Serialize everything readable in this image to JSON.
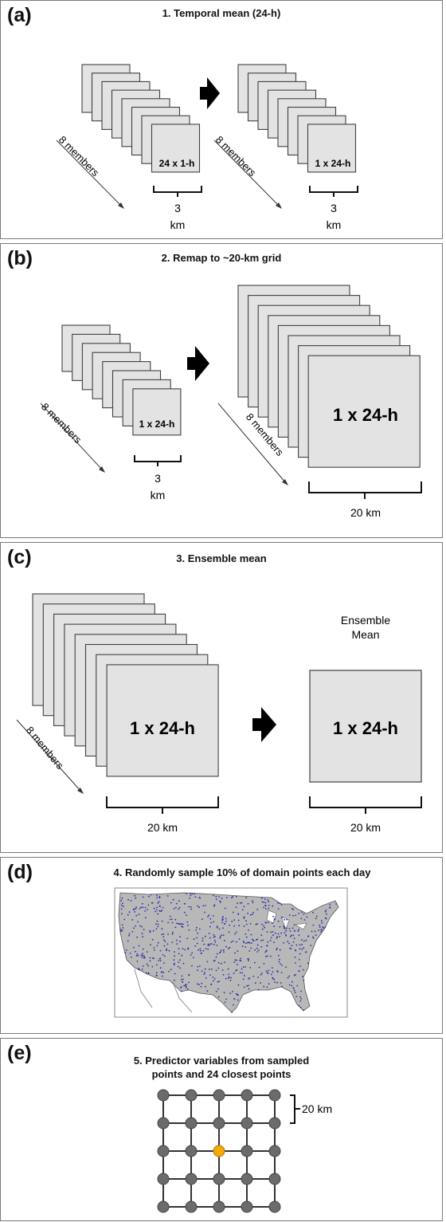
{
  "panels": {
    "a": {
      "letter": "(a)",
      "title": "1. Temporal mean (24-h)",
      "members_label": "8 members",
      "input_label": "24 x 1-h",
      "output_label": "1 x 24-h",
      "scale_number": "3",
      "scale_unit": "km"
    },
    "b": {
      "letter": "(b)",
      "title": "2. Remap to ~20-km grid",
      "members_label": "8 members",
      "input_label": "1 x 24-h",
      "output_label": "1 x 24-h",
      "input_scale_number": "3",
      "input_scale_unit": "km",
      "output_scale": "20 km"
    },
    "c": {
      "letter": "(c)",
      "title": "3. Ensemble mean",
      "members_label": "8 members",
      "input_label": "1 x 24-h",
      "output_label": "1 x 24-h",
      "output_caption_1": "Ensemble",
      "output_caption_2": "Mean",
      "input_scale": "20 km",
      "output_scale": "20 km"
    },
    "d": {
      "letter": "(d)",
      "title": "4. Randomly sample 10% of domain points each day"
    },
    "e": {
      "letter": "(e)",
      "title_line_1": "5. Predictor variables from sampled",
      "title_line_2": "points and 24 closest points",
      "spacing_label": "20 km"
    }
  },
  "colors": {
    "stack_fill": "#e3e3e3",
    "stack_stroke": "#404040",
    "arrow": "#000000",
    "map_land": "#b8b8b8",
    "map_ocean": "#ffffff",
    "sample_dots": "#2b2fa8",
    "grid_node": "#6b6b6b",
    "center_node": "#f2a900"
  }
}
